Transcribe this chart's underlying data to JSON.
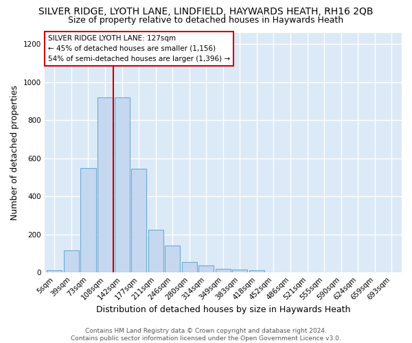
{
  "title": "SILVER RIDGE, LYOTH LANE, LINDFIELD, HAYWARDS HEATH, RH16 2QB",
  "subtitle": "Size of property relative to detached houses in Haywards Heath",
  "xlabel": "Distribution of detached houses by size in Haywards Heath",
  "ylabel": "Number of detached properties",
  "bar_labels": [
    "5sqm",
    "39sqm",
    "73sqm",
    "108sqm",
    "142sqm",
    "177sqm",
    "211sqm",
    "246sqm",
    "280sqm",
    "314sqm",
    "349sqm",
    "383sqm",
    "418sqm",
    "452sqm",
    "486sqm",
    "521sqm",
    "555sqm",
    "590sqm",
    "624sqm",
    "659sqm",
    "693sqm"
  ],
  "bar_values": [
    10,
    115,
    550,
    920,
    920,
    545,
    225,
    140,
    55,
    37,
    20,
    14,
    10,
    2,
    2,
    0,
    0,
    0,
    0,
    0,
    0
  ],
  "bar_color": "#c5d8f0",
  "bar_edge_color": "#6aaad4",
  "vline_color": "#cc0000",
  "vline_position": 3.5,
  "annotation_text": "SILVER RIDGE LYOTH LANE: 127sqm\n← 45% of detached houses are smaller (1,156)\n54% of semi-detached houses are larger (1,396) →",
  "annotation_box_facecolor": "#ffffff",
  "annotation_box_edgecolor": "#cc0000",
  "ylim": [
    0,
    1260
  ],
  "yticks": [
    0,
    200,
    400,
    600,
    800,
    1000,
    1200
  ],
  "footer_text": "Contains HM Land Registry data © Crown copyright and database right 2024.\nContains public sector information licensed under the Open Government Licence v3.0.",
  "fig_facecolor": "#ffffff",
  "axes_facecolor": "#dce9f7",
  "grid_color": "#ffffff",
  "title_fontsize": 10,
  "subtitle_fontsize": 9,
  "xlabel_fontsize": 9,
  "ylabel_fontsize": 9,
  "tick_fontsize": 7.5,
  "annotation_fontsize": 7.5,
  "footer_fontsize": 6.5
}
